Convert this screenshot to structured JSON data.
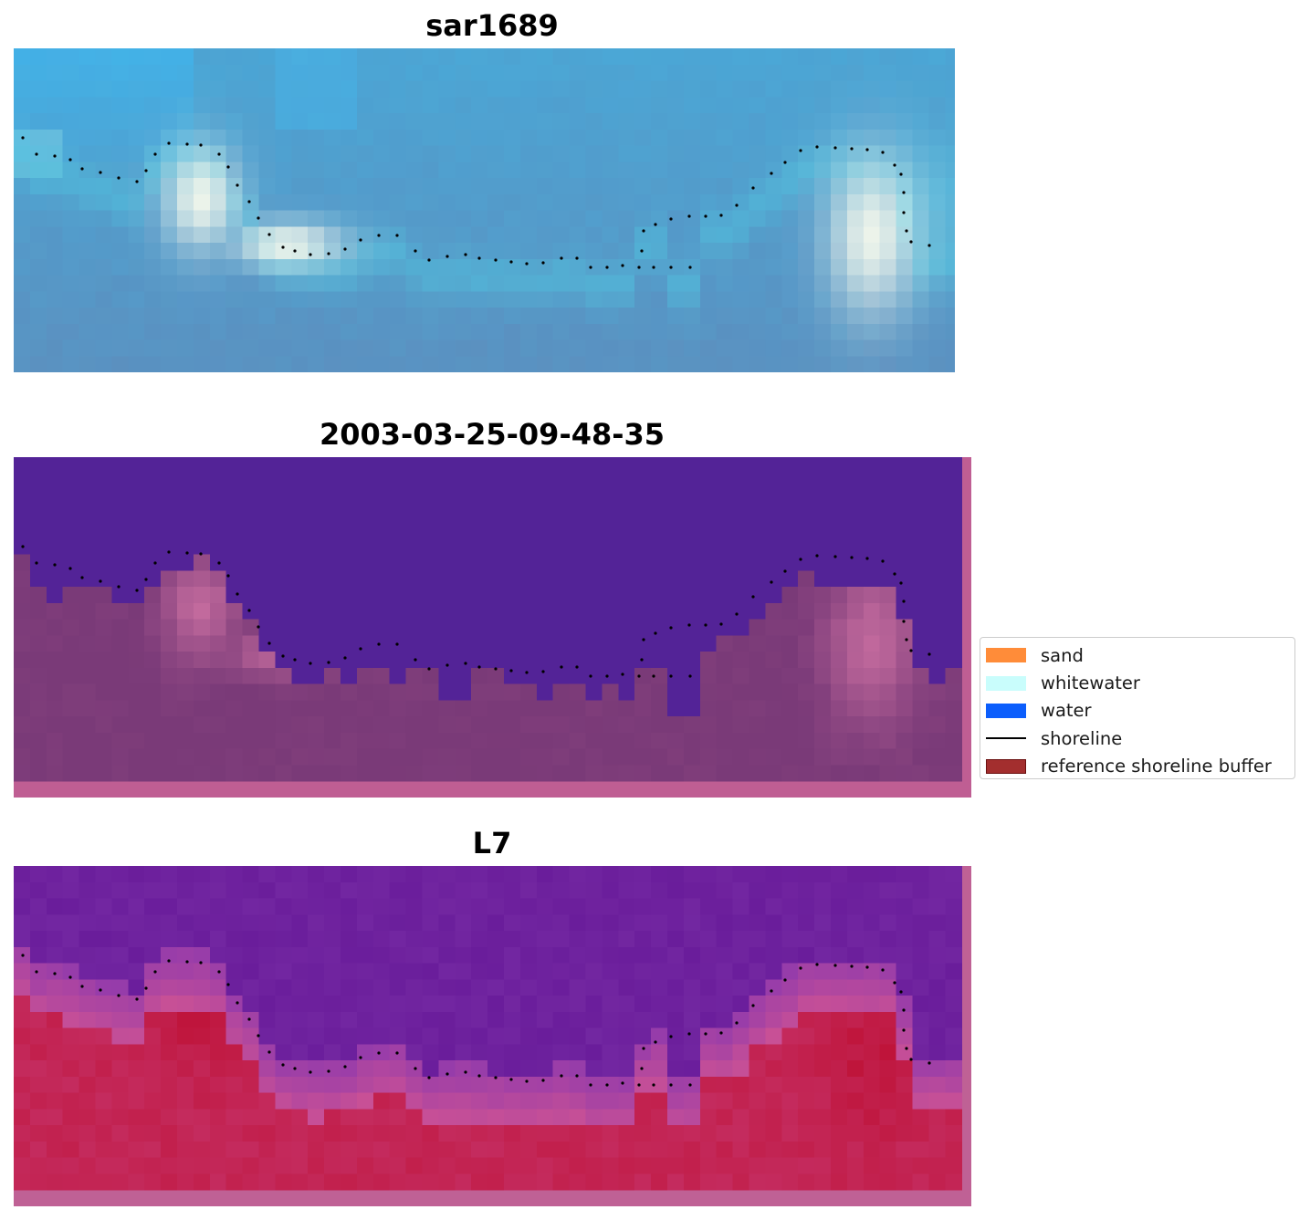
{
  "panels": [
    {
      "title": "sar1689",
      "type": "rgb"
    },
    {
      "title": "2003-03-25-09-48-35",
      "type": "classification"
    },
    {
      "title": "L7",
      "type": "index"
    }
  ],
  "legend": {
    "items": [
      {
        "label": "sand",
        "kind": "patch",
        "color": "#ff8c39"
      },
      {
        "label": "whitewater",
        "kind": "patch",
        "color": "#c9fdfc"
      },
      {
        "label": "water",
        "kind": "patch",
        "color": "#0c5efc"
      },
      {
        "label": "shoreline",
        "kind": "line",
        "color": "#000000"
      },
      {
        "label": "reference shoreline buffer",
        "kind": "patch",
        "color": "#a32e2e"
      }
    ]
  },
  "colors": {
    "rgb_sky": "#4aa6d6",
    "rgb_deep": "#5b8fbf",
    "rgb_foam": "#f4f8ec",
    "class_water": "#532397",
    "class_land": "#7a3a78",
    "class_edge": "#bf5e93",
    "index_top": "#6a1d9b",
    "index_low": "#c42b5e",
    "shoreline_dots": "#000000"
  }
}
